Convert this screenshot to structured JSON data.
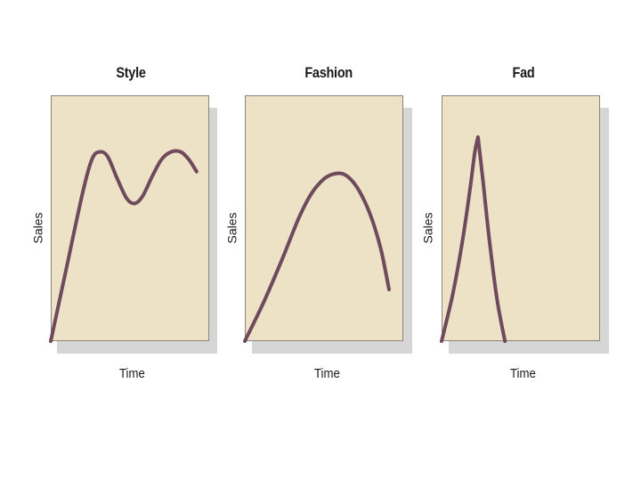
{
  "chart_data": [
    {
      "type": "line",
      "title": "Style",
      "xlabel": "Time",
      "ylabel": "Sales",
      "xlim": [
        0,
        100
      ],
      "ylim": [
        0,
        100
      ],
      "grid": false,
      "series": [
        {
          "x": [
            0,
            10,
            20,
            26,
            31,
            36,
            42,
            48,
            53,
            58,
            64,
            70,
            76,
            82,
            87,
            92
          ],
          "y": [
            0,
            30,
            60,
            74,
            77,
            75,
            66,
            58,
            56,
            59,
            67,
            74,
            77,
            77,
            74,
            69
          ]
        }
      ]
    },
    {
      "type": "line",
      "title": "Fashion",
      "xlabel": "Time",
      "ylabel": "Sales",
      "xlim": [
        0,
        100
      ],
      "ylim": [
        0,
        100
      ],
      "grid": false,
      "series": [
        {
          "x": [
            0,
            12,
            24,
            34,
            42,
            50,
            56,
            62,
            68,
            74,
            80,
            86,
            91
          ],
          "y": [
            0,
            16,
            34,
            50,
            60,
            66,
            68,
            68,
            65,
            59,
            50,
            37,
            21
          ]
        }
      ]
    },
    {
      "type": "line",
      "title": "Fad",
      "xlabel": "Time",
      "ylabel": "Sales",
      "xlim": [
        0,
        100
      ],
      "ylim": [
        0,
        100
      ],
      "grid": false,
      "series": [
        {
          "x": [
            0,
            7,
            13,
            18,
            21,
            23,
            26,
            30,
            35,
            40
          ],
          "y": [
            0,
            19,
            40,
            62,
            77,
            83,
            66,
            42,
            17,
            0
          ]
        }
      ]
    }
  ]
}
